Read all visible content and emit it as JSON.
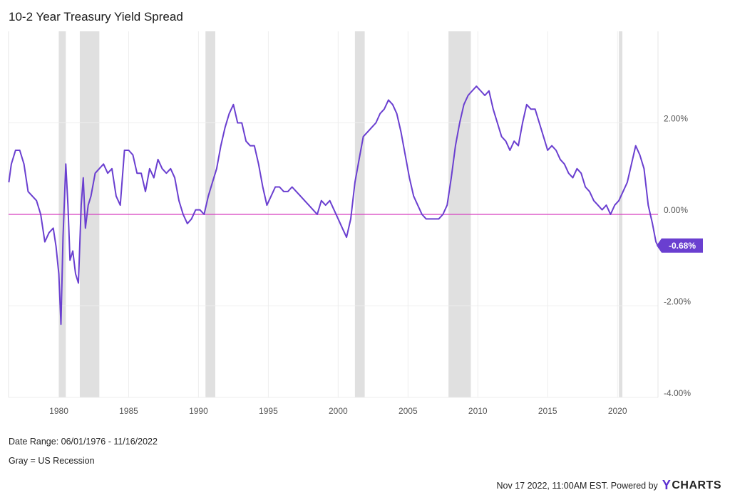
{
  "chart_data": {
    "type": "line",
    "title": "10-2 Year Treasury Yield Spread",
    "xlabel": "",
    "ylabel": "",
    "xlim": [
      1976.4,
      2022.9
    ],
    "ylim": [
      -4.0,
      4.0
    ],
    "y_ticks": [
      "-4.00%",
      "-2.00%",
      "0.00%",
      "2.00%"
    ],
    "y_tick_values": [
      -4,
      -2,
      0,
      2
    ],
    "x_ticks": [
      "1980",
      "1985",
      "1990",
      "1995",
      "2000",
      "2005",
      "2010",
      "2015",
      "2020"
    ],
    "x_tick_values": [
      1980,
      1985,
      1990,
      1995,
      2000,
      2005,
      2010,
      2015,
      2020
    ],
    "grid": true,
    "zero_line_color": "#d63fbf",
    "series": [
      {
        "color": "#6a3fd0",
        "last_value_label": "-0.68%",
        "x": [
          1976.42,
          1976.6,
          1976.9,
          1977.2,
          1977.5,
          1977.8,
          1978.1,
          1978.4,
          1978.7,
          1979.0,
          1979.3,
          1979.6,
          1979.8,
          1980.0,
          1980.15,
          1980.3,
          1980.5,
          1980.65,
          1980.8,
          1981.0,
          1981.2,
          1981.4,
          1981.6,
          1981.75,
          1981.9,
          1982.1,
          1982.3,
          1982.6,
          1982.9,
          1983.2,
          1983.5,
          1983.8,
          1984.1,
          1984.4,
          1984.7,
          1985.0,
          1985.3,
          1985.6,
          1985.9,
          1986.2,
          1986.5,
          1986.8,
          1987.1,
          1987.4,
          1987.7,
          1988.0,
          1988.3,
          1988.6,
          1988.9,
          1989.2,
          1989.5,
          1989.8,
          1990.1,
          1990.4,
          1990.7,
          1991.0,
          1991.3,
          1991.6,
          1991.9,
          1992.2,
          1992.5,
          1992.8,
          1993.1,
          1993.4,
          1993.7,
          1994.0,
          1994.3,
          1994.6,
          1994.9,
          1995.2,
          1995.5,
          1995.8,
          1996.1,
          1996.4,
          1996.7,
          1997.0,
          1997.3,
          1997.6,
          1997.9,
          1998.2,
          1998.5,
          1998.8,
          1999.1,
          1999.4,
          1999.7,
          2000.0,
          2000.3,
          2000.6,
          2000.9,
          2001.2,
          2001.5,
          2001.8,
          2002.1,
          2002.4,
          2002.7,
          2003.0,
          2003.3,
          2003.6,
          2003.9,
          2004.2,
          2004.5,
          2004.8,
          2005.1,
          2005.4,
          2005.7,
          2006.0,
          2006.3,
          2006.6,
          2006.9,
          2007.2,
          2007.5,
          2007.8,
          2008.1,
          2008.4,
          2008.7,
          2009.0,
          2009.3,
          2009.6,
          2009.9,
          2010.2,
          2010.5,
          2010.8,
          2011.1,
          2011.4,
          2011.7,
          2012.0,
          2012.3,
          2012.6,
          2012.9,
          2013.2,
          2013.5,
          2013.8,
          2014.1,
          2014.4,
          2014.7,
          2015.0,
          2015.3,
          2015.6,
          2015.9,
          2016.2,
          2016.5,
          2016.8,
          2017.1,
          2017.4,
          2017.7,
          2018.0,
          2018.3,
          2018.6,
          2018.9,
          2019.2,
          2019.5,
          2019.8,
          2020.1,
          2020.4,
          2020.7,
          2021.0,
          2021.3,
          2021.6,
          2021.9,
          2022.2,
          2022.5,
          2022.75,
          2022.88
        ],
        "y": [
          0.7,
          1.1,
          1.4,
          1.4,
          1.1,
          0.5,
          0.4,
          0.3,
          0.0,
          -0.6,
          -0.4,
          -0.3,
          -0.7,
          -1.3,
          -2.4,
          -0.5,
          1.1,
          0.2,
          -1.0,
          -0.8,
          -1.3,
          -1.5,
          0.2,
          0.8,
          -0.3,
          0.2,
          0.4,
          0.9,
          1.0,
          1.1,
          0.9,
          1.0,
          0.4,
          0.2,
          1.4,
          1.4,
          1.3,
          0.9,
          0.9,
          0.5,
          1.0,
          0.8,
          1.2,
          1.0,
          0.9,
          1.0,
          0.8,
          0.3,
          0.0,
          -0.2,
          -0.1,
          0.1,
          0.1,
          0.0,
          0.4,
          0.7,
          1.0,
          1.5,
          1.9,
          2.2,
          2.4,
          2.0,
          2.0,
          1.6,
          1.5,
          1.5,
          1.1,
          0.6,
          0.2,
          0.4,
          0.6,
          0.6,
          0.5,
          0.5,
          0.6,
          0.5,
          0.4,
          0.3,
          0.2,
          0.1,
          0.0,
          0.3,
          0.2,
          0.3,
          0.1,
          -0.1,
          -0.3,
          -0.5,
          -0.1,
          0.7,
          1.2,
          1.7,
          1.8,
          1.9,
          2.0,
          2.2,
          2.3,
          2.5,
          2.4,
          2.2,
          1.8,
          1.3,
          0.8,
          0.4,
          0.2,
          0.0,
          -0.1,
          -0.1,
          -0.1,
          -0.1,
          0.0,
          0.2,
          0.8,
          1.5,
          2.0,
          2.4,
          2.6,
          2.7,
          2.8,
          2.7,
          2.6,
          2.7,
          2.3,
          2.0,
          1.7,
          1.6,
          1.4,
          1.6,
          1.5,
          2.0,
          2.4,
          2.3,
          2.3,
          2.0,
          1.7,
          1.4,
          1.5,
          1.4,
          1.2,
          1.1,
          0.9,
          0.8,
          1.0,
          0.9,
          0.6,
          0.5,
          0.3,
          0.2,
          0.1,
          0.2,
          0.0,
          0.2,
          0.3,
          0.5,
          0.7,
          1.1,
          1.5,
          1.3,
          1.0,
          0.2,
          -0.2,
          -0.6,
          -0.68
        ]
      }
    ],
    "recessions": [
      [
        1980.0,
        1980.5
      ],
      [
        1981.5,
        1982.9
      ],
      [
        1990.5,
        1991.2
      ],
      [
        2001.2,
        2001.9
      ],
      [
        2007.9,
        2009.5
      ],
      [
        2020.1,
        2020.35
      ]
    ]
  },
  "footer": {
    "date_range": "Date Range: 06/01/1976 - 11/16/2022",
    "legend": "Gray = US Recession",
    "timestamp": "Nov 17 2022, 11:00AM EST. Powered by",
    "brand": "CHARTS",
    "brand_mark": "Y"
  },
  "colors": {
    "line": "#6a3fd0",
    "zero_line": "#d63fbf",
    "recession": "#e0e0e0",
    "grid": "#eeeeee",
    "badge": "#6a3fd0"
  }
}
